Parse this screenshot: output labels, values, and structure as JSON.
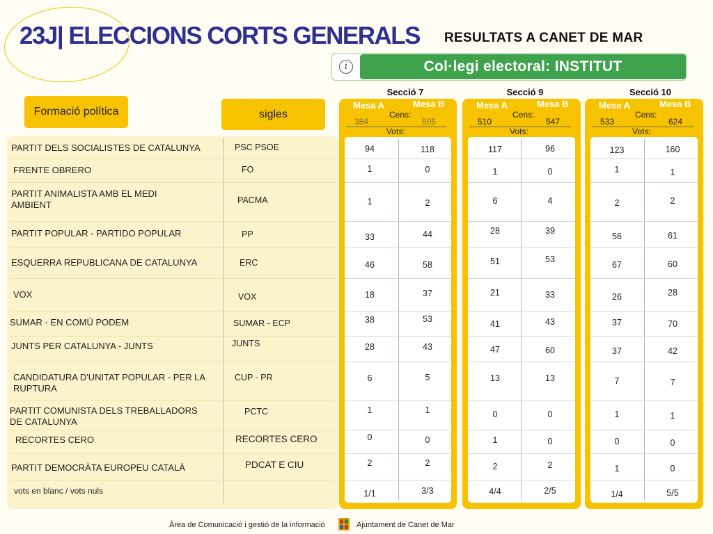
{
  "header": {
    "title": "23J| ELECCIONS CORTS GENERALS",
    "subtitle": "RESULTATS A CANET DE MAR",
    "banner": "Col·legi electoral:  INSTITUT",
    "info_glyph": "i"
  },
  "table_headers": {
    "party": "Formació política",
    "acronym": "sigles"
  },
  "parties": [
    {
      "name": "PARTIT DELS SOCIALISTES DE CATALUNYA",
      "acronym": "PSC PSOE"
    },
    {
      "name": "FRENTE OBRERO",
      "acronym": "FO"
    },
    {
      "name": "PARTIT ANIMALISTA AMB EL MEDI AMBIENT",
      "acronym": "PACMA"
    },
    {
      "name": "PARTIT POPULAR - PARTIDO POPULAR",
      "acronym": "PP"
    },
    {
      "name": "ESQUERRA REPUBLICANA DE CATALUNYA",
      "acronym": "ERC"
    },
    {
      "name": "VOX",
      "acronym": "VOX"
    },
    {
      "name": "SUMAR - EN COMÚ PODEM",
      "acronym": "SUMAR - ECP"
    },
    {
      "name": "JUNTS PER CATALUNYA - JUNTS",
      "acronym": "JUNTS"
    },
    {
      "name": "CANDIDATURA D'UNITAT POPULAR - PER LA RUPTURA",
      "acronym": "CUP - PR"
    },
    {
      "name": "PARTIT COMUNISTA DELS TREBALLADORS DE CATALUNYA",
      "acronym": "PCTC"
    },
    {
      "name": "RECORTES CERO",
      "acronym": "RECORTES CERO"
    },
    {
      "name": "PARTIT DEMOCRÀTA EUROPEU CATALÀ",
      "acronym": "PDCAT E CIU"
    },
    {
      "name": "vots en blanc  / vots nuls",
      "acronym": ""
    }
  ],
  "labels": {
    "mesa_a": "Mesa A",
    "mesa_b": "Mesa B",
    "cens": "Cens:",
    "vots": "Vots:"
  },
  "sections": [
    {
      "name": "Secció 7",
      "cens_a": "384",
      "cens_b": "505",
      "votes_a": [
        "94",
        "1",
        "1",
        "33",
        "46",
        "18",
        "38",
        "28",
        "6",
        "1",
        "0",
        "2",
        "1/1"
      ],
      "votes_b": [
        "118",
        "0",
        "2",
        "44",
        "58",
        "37",
        "53",
        "43",
        "5",
        "1",
        "0",
        "2",
        "3/3"
      ]
    },
    {
      "name": "Secció 9",
      "cens_a": "510",
      "cens_b": "547",
      "votes_a": [
        "117",
        "1",
        "6",
        "28",
        "51",
        "21",
        "41",
        "47",
        "13",
        "0",
        "1",
        "2",
        "4/4"
      ],
      "votes_b": [
        "96",
        "0",
        "4",
        "39",
        "53",
        "33",
        "43",
        "60",
        "13",
        "0",
        "0",
        "2",
        "2/5"
      ]
    },
    {
      "name": "Secció 10",
      "cens_a": "533",
      "cens_b": "624",
      "votes_a": [
        "123",
        "1",
        "2",
        "56",
        "67",
        "26",
        "37",
        "37",
        "7",
        "1",
        "0",
        "1",
        "1/4"
      ],
      "votes_b": [
        "160",
        "1",
        "2",
        "61",
        "60",
        "28",
        "70",
        "42",
        "7",
        "1",
        "0",
        "0",
        "5/5"
      ]
    }
  ],
  "footer": {
    "department": "Àrea de Comunicació i gestió de la informació",
    "organization": "Ajuntament de Canet de Mar"
  }
}
